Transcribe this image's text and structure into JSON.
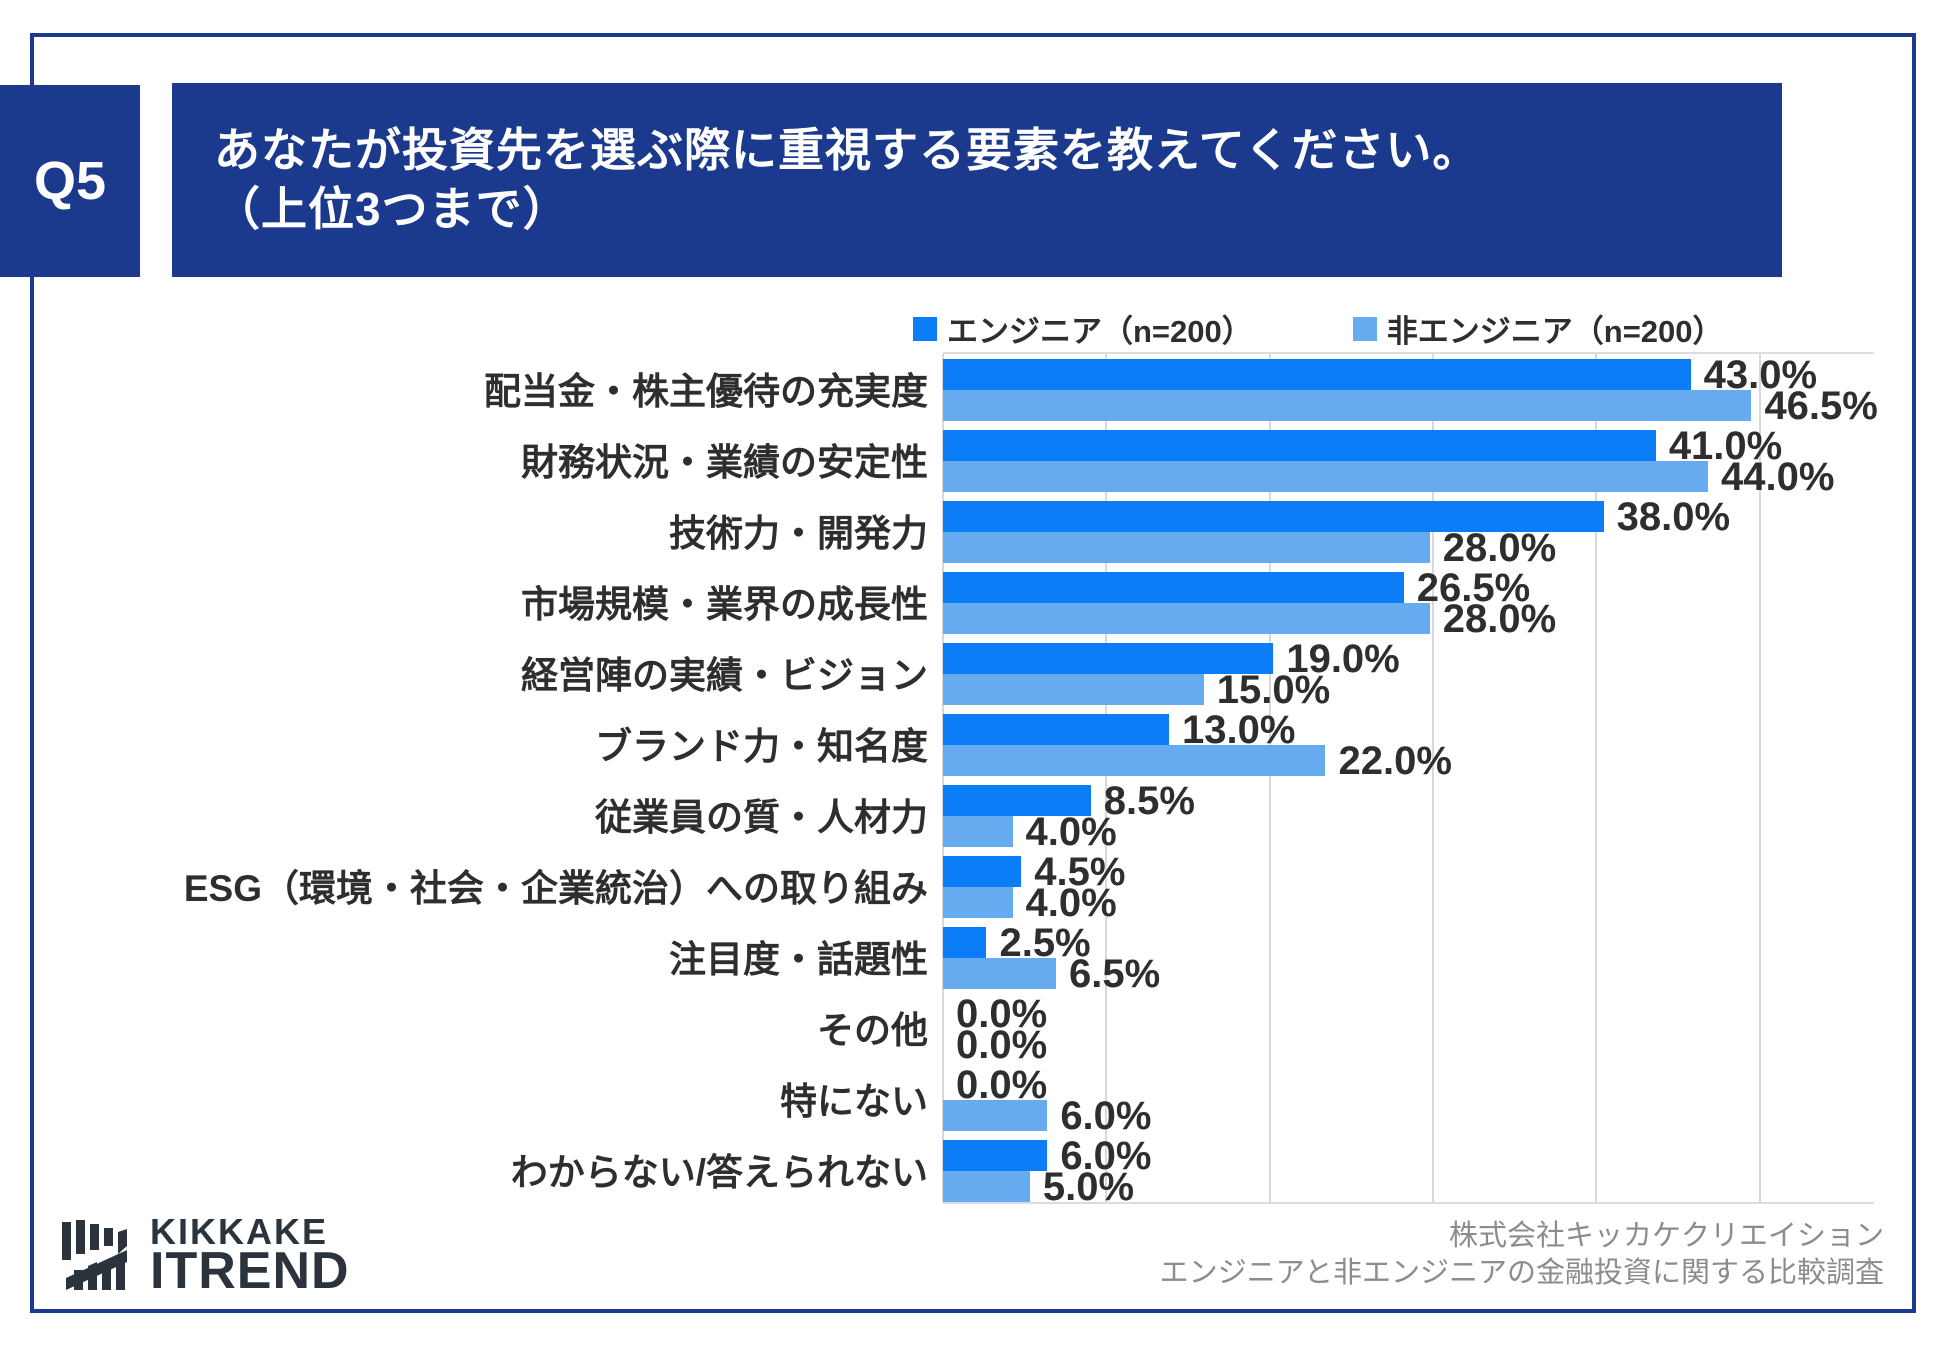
{
  "header": {
    "question_number": "Q5",
    "title_line1": "あなたが投資先を選ぶ際に重視する要素を教えてください。",
    "title_line2": "（上位3つまで）",
    "banner_color": "#1b3a8e",
    "text_color": "#ffffff"
  },
  "chart_data": {
    "type": "bar",
    "orientation": "horizontal",
    "title": "あなたが投資先を選ぶ際に重視する要素を教えてください。（上位3つまで）",
    "categories": [
      "配当金・株主優待の充実度",
      "財務状況・業績の安定性",
      "技術力・開発力",
      "市場規模・業界の成長性",
      "経営陣の実績・ビジョン",
      "ブランド力・知名度",
      "従業員の質・人材力",
      "ESG（環境・社会・企業統治）への取り組み",
      "注目度・話題性",
      "その他",
      "特にない",
      "わからない/答えられない"
    ],
    "series": [
      {
        "name": "エンジニア（n=200）",
        "color": "#0b7ef7",
        "values": [
          43.0,
          41.0,
          38.0,
          26.5,
          19.0,
          13.0,
          8.5,
          4.5,
          2.5,
          0.0,
          0.0,
          6.0
        ]
      },
      {
        "name": "非エンジニア（n=200）",
        "color": "#66aaf0",
        "values": [
          46.5,
          44.0,
          28.0,
          28.0,
          15.0,
          22.0,
          4.0,
          4.0,
          6.5,
          0.0,
          6.0,
          5.0
        ]
      }
    ],
    "value_suffix": "%",
    "xlim": [
      0,
      57
    ],
    "gridline_step": 10,
    "gridline_max": 50,
    "grid": true,
    "legend_position": "top-center",
    "grid_color": "#d9d9d9"
  },
  "footer": {
    "logo": {
      "brand_top": "KIKKAKE",
      "brand_bottom": "ITREND",
      "color": "#2b333d"
    },
    "credit_line1": "株式会社キッカケクリエイション",
    "credit_line2": "エンジニアと非エンジニアの金融投資に関する比較調査"
  }
}
